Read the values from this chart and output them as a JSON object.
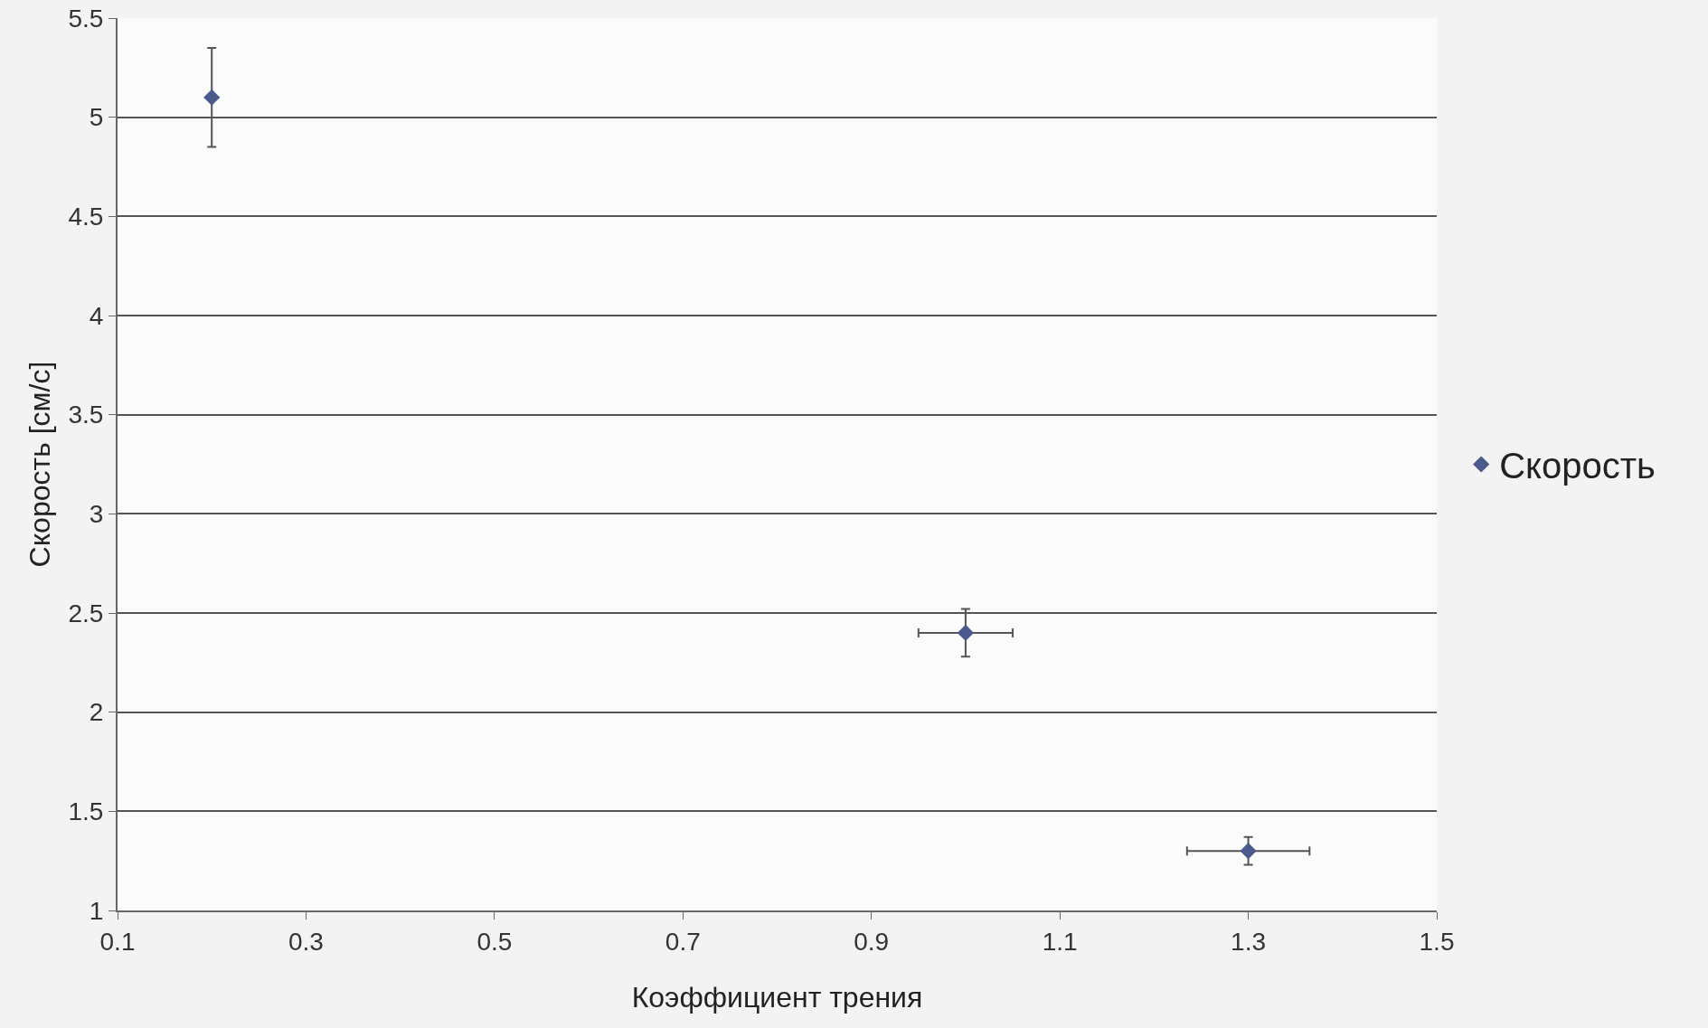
{
  "chart_data": {
    "type": "scatter",
    "xlabel": "Коэффициент трения",
    "ylabel": "Скорость [см/с]",
    "x": [
      0.2,
      1.0,
      1.3
    ],
    "series": [
      {
        "name": "Скорость",
        "color": "#4a5a8c",
        "values": [
          5.1,
          2.4,
          1.3
        ],
        "errors": [
          0.25,
          0.12,
          0.07
        ],
        "xerrors": [
          null,
          0.05,
          0.065
        ]
      }
    ],
    "xlim": [
      0.1,
      1.5
    ],
    "xticks": [
      0.1,
      0.3,
      0.5,
      0.7,
      0.9,
      1.1,
      1.3,
      1.5
    ],
    "ylim": [
      1,
      5.5
    ],
    "yticks": [
      1,
      1.5,
      2,
      2.5,
      3,
      3.5,
      4,
      4.5,
      5,
      5.5
    ],
    "grid": "y",
    "legend": "right",
    "marker": "diamond"
  }
}
